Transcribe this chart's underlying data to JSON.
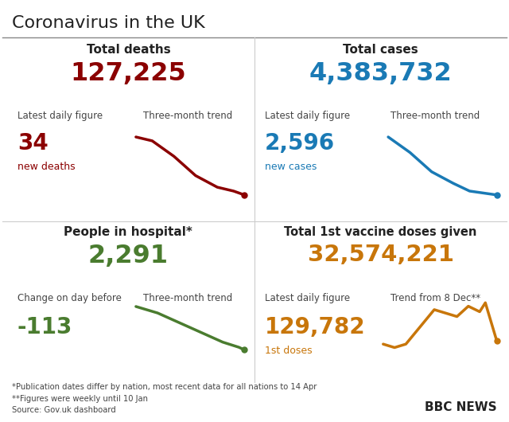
{
  "title": "Coronavirus in the UK",
  "bg_color": "#ffffff",
  "title_color": "#222222",
  "q1_header": "Total deaths",
  "q1_big_num": "127,225",
  "q1_big_color": "#8b0000",
  "q1_label1": "Latest daily figure",
  "q1_label2": "Three-month trend",
  "q1_small_num": "34",
  "q1_small_color": "#8b0000",
  "q1_small_label": "new deaths",
  "q1_trend_color": "#8b0000",
  "q1_trend_x": [
    0,
    0.15,
    0.35,
    0.55,
    0.75,
    0.9,
    1.0
  ],
  "q1_trend_y": [
    0.85,
    0.8,
    0.6,
    0.35,
    0.2,
    0.15,
    0.1
  ],
  "q2_header": "Total cases",
  "q2_big_num": "4,383,732",
  "q2_big_color": "#1a7ab5",
  "q2_label1": "Latest daily figure",
  "q2_label2": "Three-month trend",
  "q2_small_num": "2,596",
  "q2_small_color": "#1a7ab5",
  "q2_small_label": "new cases",
  "q2_trend_color": "#1a7ab5",
  "q2_trend_x": [
    0,
    0.2,
    0.4,
    0.6,
    0.75,
    0.9,
    1.0
  ],
  "q2_trend_y": [
    0.85,
    0.65,
    0.4,
    0.25,
    0.15,
    0.12,
    0.1
  ],
  "q3_header": "People in hospital*",
  "q3_big_num": "2,291",
  "q3_big_color": "#4a7c2f",
  "q3_label1": "Change on day before",
  "q3_label2": "Three-month trend",
  "q3_small_num": "-113",
  "q3_small_color": "#4a7c2f",
  "q3_trend_color": "#4a7c2f",
  "q3_trend_x": [
    0,
    0.2,
    0.4,
    0.6,
    0.8,
    0.95,
    1.0
  ],
  "q3_trend_y": [
    0.75,
    0.65,
    0.5,
    0.35,
    0.2,
    0.12,
    0.08
  ],
  "q4_header": "Total 1st vaccine doses given",
  "q4_big_num": "32,574,221",
  "q4_big_color": "#c8760a",
  "q4_label1": "Latest daily figure",
  "q4_label2": "Trend from 8 Dec**",
  "q4_small_num": "129,782",
  "q4_small_color": "#c8760a",
  "q4_small_label": "1st doses",
  "q4_trend_color": "#c8760a",
  "q4_trend_x": [
    0,
    0.1,
    0.2,
    0.35,
    0.45,
    0.55,
    0.65,
    0.75,
    0.85,
    0.9,
    1.0
  ],
  "q4_trend_y": [
    0.25,
    0.2,
    0.25,
    0.55,
    0.75,
    0.7,
    0.65,
    0.8,
    0.72,
    0.85,
    0.3
  ],
  "footnote1": "*Publication dates differ by nation, most recent data for all nations to 14 Apr",
  "footnote2": "**Figures were weekly until 10 Jan",
  "footnote3": "Source: Gov.uk dashboard",
  "bbc_text": "BBC NEWS"
}
